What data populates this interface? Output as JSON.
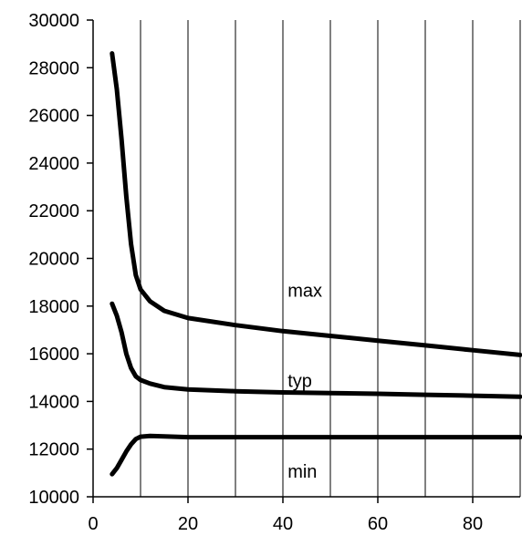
{
  "chart_data": {
    "type": "line",
    "title": "",
    "xlabel": "",
    "ylabel": "",
    "xlim": [
      0,
      90
    ],
    "ylim": [
      10000,
      30000
    ],
    "x_ticks": [
      0,
      20,
      40,
      60,
      80
    ],
    "x_tick_labels": [
      "0",
      "20",
      "40",
      "60",
      "80"
    ],
    "y_ticks": [
      10000,
      12000,
      14000,
      16000,
      18000,
      20000,
      22000,
      24000,
      26000,
      28000,
      30000
    ],
    "y_tick_labels": [
      "10000",
      "12000",
      "14000",
      "16000",
      "18000",
      "20000",
      "22000",
      "24000",
      "26000",
      "28000",
      "30000"
    ],
    "x_gridlines": [
      10,
      20,
      30,
      40,
      50,
      60,
      70,
      80,
      90
    ],
    "y_gridlines": [],
    "grid": true,
    "legend": "none",
    "series": [
      {
        "name": "max",
        "label_at": [
          41,
          18400
        ],
        "points": [
          [
            4,
            28600
          ],
          [
            5,
            27100
          ],
          [
            6,
            25000
          ],
          [
            7,
            22600
          ],
          [
            8,
            20600
          ],
          [
            9,
            19300
          ],
          [
            10,
            18700
          ],
          [
            12,
            18200
          ],
          [
            15,
            17800
          ],
          [
            20,
            17500
          ],
          [
            30,
            17200
          ],
          [
            40,
            16950
          ],
          [
            50,
            16750
          ],
          [
            60,
            16550
          ],
          [
            70,
            16350
          ],
          [
            80,
            16150
          ],
          [
            90,
            15950
          ]
        ]
      },
      {
        "name": "typ",
        "label_at": [
          41,
          14600
        ],
        "points": [
          [
            4,
            18100
          ],
          [
            5,
            17600
          ],
          [
            6,
            16900
          ],
          [
            7,
            16000
          ],
          [
            8,
            15400
          ],
          [
            9,
            15050
          ],
          [
            10,
            14900
          ],
          [
            12,
            14750
          ],
          [
            15,
            14600
          ],
          [
            20,
            14500
          ],
          [
            30,
            14430
          ],
          [
            40,
            14380
          ],
          [
            50,
            14350
          ],
          [
            60,
            14320
          ],
          [
            70,
            14280
          ],
          [
            80,
            14240
          ],
          [
            90,
            14200
          ]
        ]
      },
      {
        "name": "min",
        "label_at": [
          41,
          10800
        ],
        "points": [
          [
            4,
            10950
          ],
          [
            5,
            11200
          ],
          [
            6,
            11550
          ],
          [
            7,
            11900
          ],
          [
            8,
            12200
          ],
          [
            9,
            12420
          ],
          [
            10,
            12520
          ],
          [
            12,
            12550
          ],
          [
            15,
            12530
          ],
          [
            20,
            12500
          ],
          [
            30,
            12500
          ],
          [
            40,
            12500
          ],
          [
            50,
            12500
          ],
          [
            60,
            12500
          ],
          [
            70,
            12500
          ],
          [
            80,
            12500
          ],
          [
            90,
            12500
          ]
        ]
      }
    ]
  }
}
